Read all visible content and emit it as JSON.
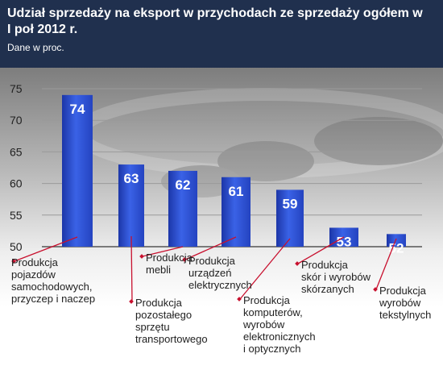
{
  "header": {
    "title": "Udział sprzedaży na eksport w przychodach ze sprzedaży ogółem w I poł 2012 r.",
    "subtitle": "Dane w proc."
  },
  "colors": {
    "header_bg": "#20304e",
    "bar": "#2a4fd4",
    "marker": "#c8102e"
  },
  "chart_data": {
    "type": "bar",
    "title": "Udział sprzedaży na eksport w przychodach ze sprzedaży ogółem w I poł 2012 r.",
    "subtitle": "Dane w proc.",
    "categories": [
      "Produkcja pojazdów samochodowych, przyczep i naczep",
      "Produkcja pozostałego sprzętu transportowego",
      "Produkcja mebli",
      "Produkcja urządzeń elektrycznych",
      "Produkcja komputerów, wyrobów elektronicznych i optycznych",
      "Produkcja skór i wyrobów skórzanych",
      "Produkcja wyrobów tekstylnych"
    ],
    "category_lines": [
      [
        "Produkcja",
        "pojazdów",
        "samochodowych,",
        "przyczep i naczep"
      ],
      [
        "Produkcja",
        "pozostałego",
        "sprzętu",
        "transportowego"
      ],
      [
        "Produkcja",
        "mebli"
      ],
      [
        "Produkcja",
        "urządzeń",
        "elektrycznych"
      ],
      [
        "Produkcja",
        "komputerów,",
        "wyrobów",
        "elektronicznych",
        "i optycznych"
      ],
      [
        "Produkcja",
        "skór i wyrobów",
        "skórzanych"
      ],
      [
        "Produkcja",
        "wyrobów",
        "tekstylnych"
      ]
    ],
    "values": [
      74,
      63,
      62,
      61,
      59,
      53,
      52
    ],
    "value_labels": [
      "74",
      "63",
      "62",
      "61",
      "59",
      "53",
      "52"
    ],
    "yticks": [
      "75",
      "70",
      "65",
      "60",
      "55",
      "50"
    ],
    "ylim": [
      50,
      75
    ],
    "xlabel": "",
    "ylabel": "",
    "grid": true,
    "legend": "none"
  }
}
